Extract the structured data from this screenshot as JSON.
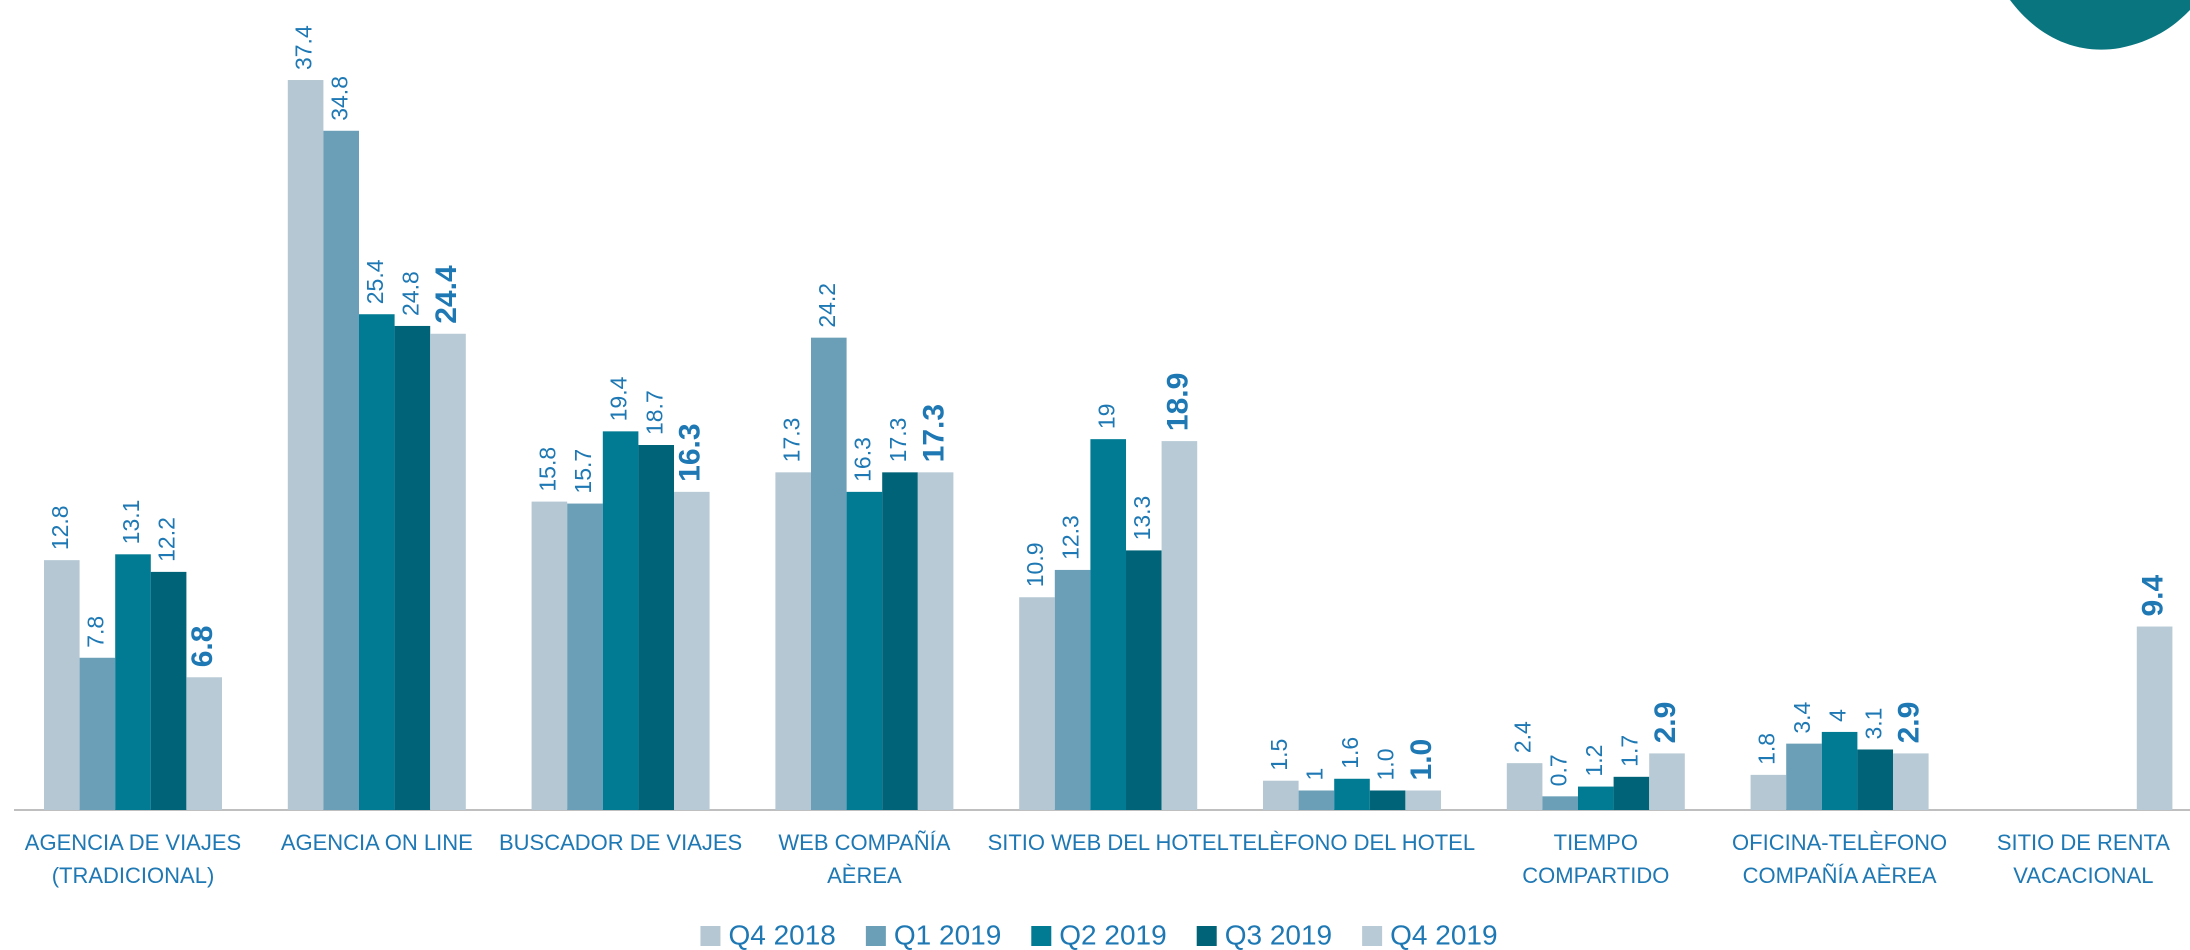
{
  "chart_data": {
    "type": "bar",
    "categories": [
      [
        "AGENCIA DE VIAJES",
        "(TRADICIONAL)"
      ],
      [
        "AGENCIA ON LINE"
      ],
      [
        "BUSCADOR DE VIAJES"
      ],
      [
        "WEB COMPAÑÍA",
        "AÈREA"
      ],
      [
        "SITIO WEB DEL HOTEL"
      ],
      [
        "TELÈFONO DEL HOTEL"
      ],
      [
        "TIEMPO",
        "COMPARTIDO"
      ],
      [
        "OFICINA-TELÈFONO",
        "COMPAÑÍA AÈREA"
      ],
      [
        "SITIO DE RENTA",
        "VACACIONAL"
      ]
    ],
    "series": [
      {
        "name": "Q4 2018",
        "color": "#b4c7d2",
        "values": [
          12.8,
          37.4,
          15.8,
          17.3,
          10.9,
          1.5,
          2.4,
          1.8,
          null
        ],
        "value_labels": [
          "12.8",
          "37.4",
          "15.8",
          "17.3",
          "10.9",
          "1.5",
          "2.4",
          "1.8",
          null
        ]
      },
      {
        "name": "Q1 2019",
        "color": "#6a9fb7",
        "values": [
          7.8,
          34.8,
          15.7,
          24.2,
          12.3,
          1,
          0.7,
          3.4,
          null
        ],
        "value_labels": [
          "7.8",
          "34.8",
          "15.7",
          "24.2",
          "12.3",
          "1",
          "0.7",
          "3.4",
          null
        ]
      },
      {
        "name": "Q2 2019",
        "color": "#007b93",
        "values": [
          13.1,
          25.4,
          19.4,
          16.3,
          19,
          1.6,
          1.2,
          4,
          null
        ],
        "value_labels": [
          "13.1",
          "25.4",
          "19.4",
          "16.3",
          "19",
          "1.6",
          "1.2",
          "4",
          null
        ]
      },
      {
        "name": "Q3 2019",
        "color": "#006378",
        "values": [
          12.2,
          24.8,
          18.7,
          17.3,
          13.3,
          1.0,
          1.7,
          3.1,
          null
        ],
        "value_labels": [
          "12.2",
          "24.8",
          "18.7",
          "17.3",
          "13.3",
          "1.0",
          "1.7",
          "3.1",
          null
        ]
      },
      {
        "name": "Q4 2019",
        "color": "#b7cad5",
        "values": [
          6.8,
          24.4,
          16.3,
          17.3,
          18.9,
          1.0,
          2.9,
          2.9,
          9.4
        ],
        "value_labels": [
          "6.8",
          "24.4",
          "16.3",
          "17.3",
          "18.9",
          "1.0",
          "2.9",
          "2.9",
          "9.4"
        ]
      }
    ],
    "ylim": [
      0,
      41.5
    ],
    "legend": "bottom"
  }
}
